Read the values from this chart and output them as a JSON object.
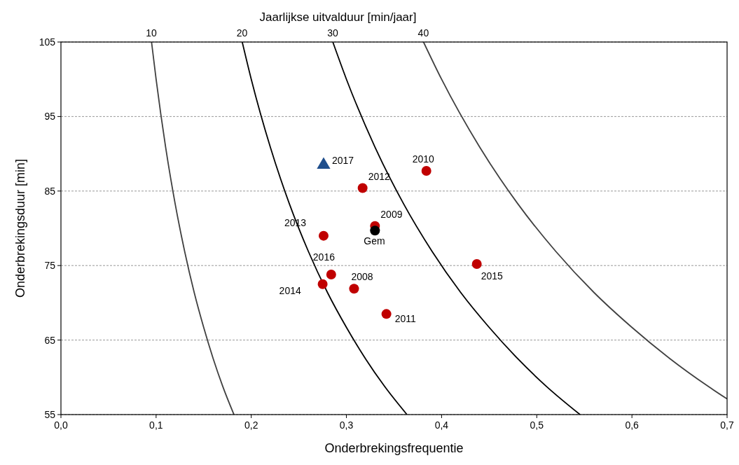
{
  "chart_data": {
    "type": "scatter",
    "xlabel": "Onderbrekingsfrequentie",
    "ylabel": "Onderbrekingsduur [min]",
    "x2label": "Jaarlijkse uitvalduur [min/jaar]",
    "xlim": [
      0,
      0.7
    ],
    "xticks": [
      {
        "value": 0,
        "label": "0,0"
      },
      {
        "value": 0.1,
        "label": "0,1"
      },
      {
        "value": 0.2,
        "label": "0,2"
      },
      {
        "value": 0.3,
        "label": "0,3"
      },
      {
        "value": 0.4,
        "label": "0,4"
      },
      {
        "value": 0.5,
        "label": "0,5"
      },
      {
        "value": 0.6,
        "label": "0,6"
      },
      {
        "value": 0.7,
        "label": "0,7"
      }
    ],
    "ylim": [
      55,
      105
    ],
    "yticks": [
      55,
      65,
      75,
      85,
      95,
      105
    ],
    "grid": "y",
    "series": [
      {
        "type": "line",
        "color": "#404040",
        "x": [
          0.0952,
          0.1,
          0.11,
          0.12,
          0.13,
          0.14,
          0.15,
          0.16,
          0.17,
          0.1818
        ],
        "values": [
          105,
          100,
          90.9,
          83.3,
          76.9,
          71.4,
          66.7,
          62.5,
          58.8,
          55
        ]
      },
      {
        "type": "line",
        "color": "#000000",
        "x": [
          0.1905,
          0.2,
          0.22,
          0.24,
          0.26,
          0.28,
          0.3,
          0.32,
          0.34,
          0.3636
        ],
        "values": [
          105,
          100,
          90.9,
          83.3,
          76.9,
          71.4,
          66.7,
          62.5,
          58.8,
          55
        ]
      },
      {
        "type": "line",
        "color": "#000000",
        "x": [
          0.2857,
          0.3,
          0.33,
          0.36,
          0.39,
          0.42,
          0.45,
          0.48,
          0.51,
          0.5455
        ],
        "values": [
          105,
          100,
          90.9,
          83.3,
          76.9,
          71.4,
          66.7,
          62.5,
          58.8,
          55
        ]
      },
      {
        "type": "line",
        "color": "#404040",
        "x": [
          0.381,
          0.4,
          0.44,
          0.48,
          0.52,
          0.56,
          0.6,
          0.64,
          0.68,
          0.7
        ],
        "values": [
          105,
          100,
          90.9,
          83.3,
          76.9,
          71.4,
          66.7,
          62.5,
          58.8,
          57.1
        ]
      },
      {
        "marker": "circle",
        "color": "#c00000",
        "x": [
          0.384,
          0.317,
          0.33,
          0.276,
          0.284,
          0.275,
          0.308,
          0.342,
          0.437
        ],
        "values": [
          87.7,
          85.4,
          80.3,
          79.0,
          73.8,
          72.5,
          71.9,
          68.5,
          75.2
        ]
      },
      {
        "marker": "circle",
        "color": "#000000",
        "x": [
          0.33
        ],
        "values": [
          79.7
        ]
      },
      {
        "marker": "triangle",
        "color": "#1f4e8c",
        "x": [
          0.276
        ],
        "values": [
          88.5
        ]
      }
    ],
    "annotations": [
      {
        "text": "10",
        "x": 0.0952,
        "y": 105
      },
      {
        "text": "20",
        "x": 0.1905,
        "y": 105
      },
      {
        "text": "30",
        "x": 0.2857,
        "y": 105
      },
      {
        "text": "40",
        "x": 0.381,
        "y": 105
      },
      {
        "text": "2017",
        "x": 0.276,
        "y": 88.5
      },
      {
        "text": "2010",
        "x": 0.384,
        "y": 87.7
      },
      {
        "text": "2012",
        "x": 0.317,
        "y": 85.4
      },
      {
        "text": "2009",
        "x": 0.33,
        "y": 80.3
      },
      {
        "text": "Gem",
        "x": 0.33,
        "y": 79.7
      },
      {
        "text": "2013",
        "x": 0.276,
        "y": 79.0
      },
      {
        "text": "2016",
        "x": 0.284,
        "y": 73.8
      },
      {
        "text": "2014",
        "x": 0.275,
        "y": 72.5
      },
      {
        "text": "2008",
        "x": 0.308,
        "y": 71.9
      },
      {
        "text": "2011",
        "x": 0.342,
        "y": 68.5
      },
      {
        "text": "2015",
        "x": 0.437,
        "y": 75.2
      }
    ]
  }
}
